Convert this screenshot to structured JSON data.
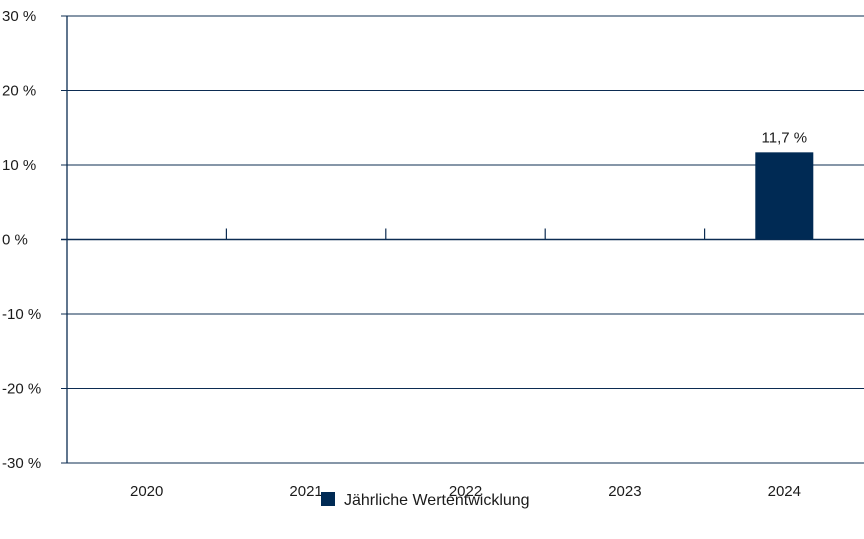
{
  "chart_data": {
    "type": "bar",
    "categories": [
      "2020",
      "2021",
      "2022",
      "2023",
      "2024"
    ],
    "series": [
      {
        "name": "Jährliche Wertentwicklung",
        "values": [
          null,
          null,
          null,
          null,
          11.7
        ],
        "data_labels": [
          "",
          "",
          "",
          "",
          "11,7 %"
        ]
      }
    ],
    "yticks": [
      30,
      20,
      10,
      0,
      -10,
      -20,
      -30
    ],
    "ytick_labels": [
      "30 %",
      "20 %",
      "10 %",
      "0 %",
      "-10 %",
      "-20 %",
      "-30 %"
    ],
    "ylim": [
      -30,
      30
    ],
    "grid": true,
    "legend_position": "bottom-center",
    "title": "",
    "xlabel": "",
    "ylabel": "",
    "colors": {
      "bar": "#002a54",
      "grid": "#0c2c52"
    }
  }
}
